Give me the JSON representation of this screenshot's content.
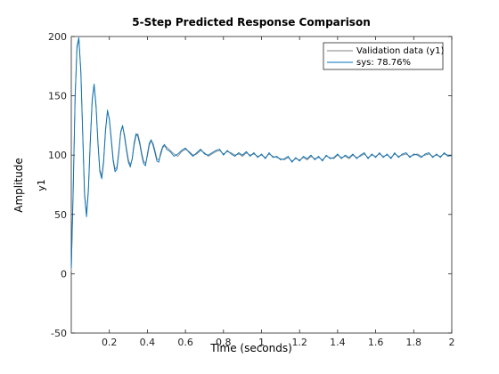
{
  "chart_data": {
    "type": "line",
    "title": "5-Step Predicted Response Comparison",
    "xlabel": "Time (seconds)",
    "ylabel": "Amplitude",
    "output_label": "y1",
    "xlim": [
      0,
      2
    ],
    "ylim": [
      -50,
      200
    ],
    "xticks": [
      0.2,
      0.4,
      0.6,
      0.8,
      1,
      1.2,
      1.4,
      1.6,
      1.8,
      2
    ],
    "yticks": [
      -50,
      0,
      50,
      100,
      150,
      200
    ],
    "grid": false,
    "legend_placement": "top-right",
    "series": [
      {
        "name": "Validation data (y1)",
        "color": "#808080",
        "x": [
          0,
          0.01,
          0.02,
          0.03,
          0.04,
          0.05,
          0.06,
          0.07,
          0.08,
          0.09,
          0.1,
          0.11,
          0.12,
          0.13,
          0.14,
          0.15,
          0.16,
          0.17,
          0.18,
          0.19,
          0.2,
          0.21,
          0.22,
          0.23,
          0.24,
          0.25,
          0.26,
          0.27,
          0.28,
          0.29,
          0.3,
          0.31,
          0.32,
          0.33,
          0.34,
          0.35,
          0.36,
          0.37,
          0.38,
          0.39,
          0.4,
          0.41,
          0.42,
          0.43,
          0.44,
          0.45,
          0.46,
          0.47,
          0.48,
          0.49,
          0.5,
          0.52,
          0.54,
          0.56,
          0.58,
          0.6,
          0.62,
          0.64,
          0.66,
          0.68,
          0.7,
          0.72,
          0.74,
          0.76,
          0.78,
          0.8,
          0.82,
          0.84,
          0.86,
          0.88,
          0.9,
          0.92,
          0.94,
          0.96,
          0.98,
          1.0,
          1.02,
          1.04,
          1.06,
          1.08,
          1.1,
          1.12,
          1.14,
          1.16,
          1.18,
          1.2,
          1.22,
          1.24,
          1.26,
          1.28,
          1.3,
          1.32,
          1.34,
          1.36,
          1.38,
          1.4,
          1.42,
          1.44,
          1.46,
          1.48,
          1.5,
          1.52,
          1.54,
          1.56,
          1.58,
          1.6,
          1.62,
          1.64,
          1.66,
          1.68,
          1.7,
          1.72,
          1.74,
          1.76,
          1.78,
          1.8,
          1.82,
          1.84,
          1.86,
          1.88,
          1.9,
          1.92,
          1.94,
          1.96,
          1.98,
          2.0
        ],
        "y": [
          2,
          70,
          150,
          190,
          198,
          172,
          120,
          68,
          50,
          72,
          112,
          148,
          159,
          140,
          112,
          88,
          82,
          96,
          122,
          136,
          131,
          115,
          97,
          88,
          90,
          104,
          119,
          124,
          117,
          106,
          96,
          92,
          96,
          108,
          116,
          118,
          111,
          102,
          95,
          93,
          99,
          108,
          112,
          110,
          104,
          97,
          96,
          100,
          106,
          108,
          107,
          104,
          101,
          99,
          103,
          105,
          103,
          100,
          101,
          104,
          102,
          99,
          101,
          103,
          104,
          101,
          103,
          102,
          100,
          101,
          99,
          102,
          100,
          101,
          99,
          100,
          98,
          101,
          99,
          98,
          97,
          96,
          98,
          95,
          97,
          96,
          98,
          96,
          99,
          97,
          98,
          96,
          99,
          98,
          97,
          100,
          98,
          99,
          97,
          100,
          98,
          99,
          101,
          98,
          100,
          99,
          101,
          99,
          100,
          98,
          101,
          99,
          100,
          101,
          99,
          100,
          101,
          99,
          100,
          101,
          99,
          100,
          99,
          101,
          100,
          99
        ]
      },
      {
        "name": "sys: 78.76%",
        "color": "#0072BD",
        "x": [
          0,
          0.01,
          0.02,
          0.03,
          0.04,
          0.05,
          0.06,
          0.07,
          0.08,
          0.09,
          0.1,
          0.11,
          0.12,
          0.13,
          0.14,
          0.15,
          0.16,
          0.17,
          0.18,
          0.19,
          0.2,
          0.21,
          0.22,
          0.23,
          0.24,
          0.25,
          0.26,
          0.27,
          0.28,
          0.29,
          0.3,
          0.31,
          0.32,
          0.33,
          0.34,
          0.35,
          0.36,
          0.37,
          0.38,
          0.39,
          0.4,
          0.41,
          0.42,
          0.43,
          0.44,
          0.45,
          0.46,
          0.47,
          0.48,
          0.49,
          0.5,
          0.52,
          0.54,
          0.56,
          0.58,
          0.6,
          0.62,
          0.64,
          0.66,
          0.68,
          0.7,
          0.72,
          0.74,
          0.76,
          0.78,
          0.8,
          0.82,
          0.84,
          0.86,
          0.88,
          0.9,
          0.92,
          0.94,
          0.96,
          0.98,
          1.0,
          1.02,
          1.04,
          1.06,
          1.08,
          1.1,
          1.12,
          1.14,
          1.16,
          1.18,
          1.2,
          1.22,
          1.24,
          1.26,
          1.28,
          1.3,
          1.32,
          1.34,
          1.36,
          1.38,
          1.4,
          1.42,
          1.44,
          1.46,
          1.48,
          1.5,
          1.52,
          1.54,
          1.56,
          1.58,
          1.6,
          1.62,
          1.64,
          1.66,
          1.68,
          1.7,
          1.72,
          1.74,
          1.76,
          1.78,
          1.8,
          1.82,
          1.84,
          1.86,
          1.88,
          1.9,
          1.92,
          1.94,
          1.96,
          1.98,
          2.0
        ],
        "y": [
          5,
          68,
          148,
          192,
          199,
          170,
          118,
          66,
          48,
          70,
          110,
          146,
          160,
          142,
          110,
          86,
          80,
          94,
          120,
          138,
          130,
          113,
          95,
          86,
          88,
          102,
          120,
          125,
          115,
          104,
          94,
          90,
          97,
          110,
          118,
          116,
          109,
          100,
          93,
          91,
          101,
          110,
          113,
          108,
          102,
          95,
          94,
          102,
          107,
          109,
          105,
          103,
          99,
          101,
          104,
          106,
          102,
          99,
          102,
          105,
          101,
          100,
          102,
          104,
          105,
          100,
          104,
          101,
          99,
          102,
          100,
          103,
          99,
          102,
          98,
          101,
          97,
          102,
          98,
          99,
          96,
          97,
          99,
          94,
          98,
          95,
          99,
          97,
          100,
          96,
          99,
          95,
          100,
          97,
          98,
          101,
          97,
          100,
          98,
          101,
          97,
          100,
          102,
          97,
          101,
          98,
          102,
          98,
          101,
          97,
          102,
          98,
          101,
          102,
          98,
          101,
          100,
          98,
          101,
          102,
          98,
          101,
          98,
          102,
          99,
          100
        ]
      }
    ]
  }
}
